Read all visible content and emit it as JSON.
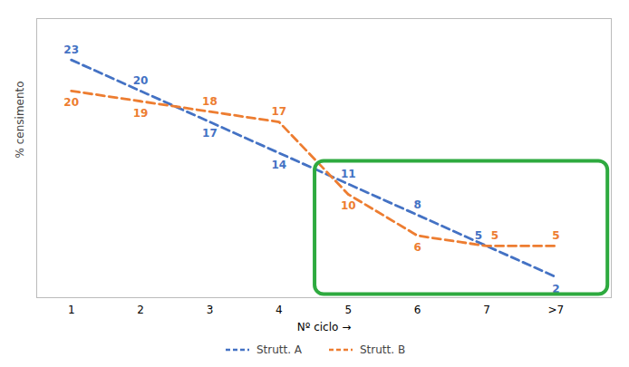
{
  "chart_data": {
    "type": "line",
    "xlabel": "Nº ciclo",
    "ylabel": "% censimento",
    "x": [
      1,
      2,
      3,
      4,
      5,
      6,
      7,
      8
    ],
    "series": [
      {
        "name": "Strutt. A",
        "color": "#4472C4",
        "values": [
          23,
          20,
          17,
          14,
          11,
          8,
          5,
          2
        ],
        "line_style": "dashed"
      },
      {
        "name": "Strutt. B",
        "color": "#ED7D31",
        "values": [
          20,
          19,
          18,
          17,
          10,
          6,
          5,
          5
        ],
        "line_style": "dashed"
      }
    ],
    "xlim": [
      0.5,
      8.8
    ],
    "xticks": [
      1,
      2,
      3,
      4,
      5,
      6,
      7,
      {
        "value": 8,
        "label": ">7"
      }
    ],
    "ylim": [
      0,
      27
    ],
    "tick_labels": "x",
    "data_labels": true,
    "grid": false,
    "legend": "bottom",
    "box": {
      "x": [
        4.52,
        8.75
      ],
      "y": [
        0.3,
        13.2
      ],
      "color": "#2EAA3F"
    }
  }
}
